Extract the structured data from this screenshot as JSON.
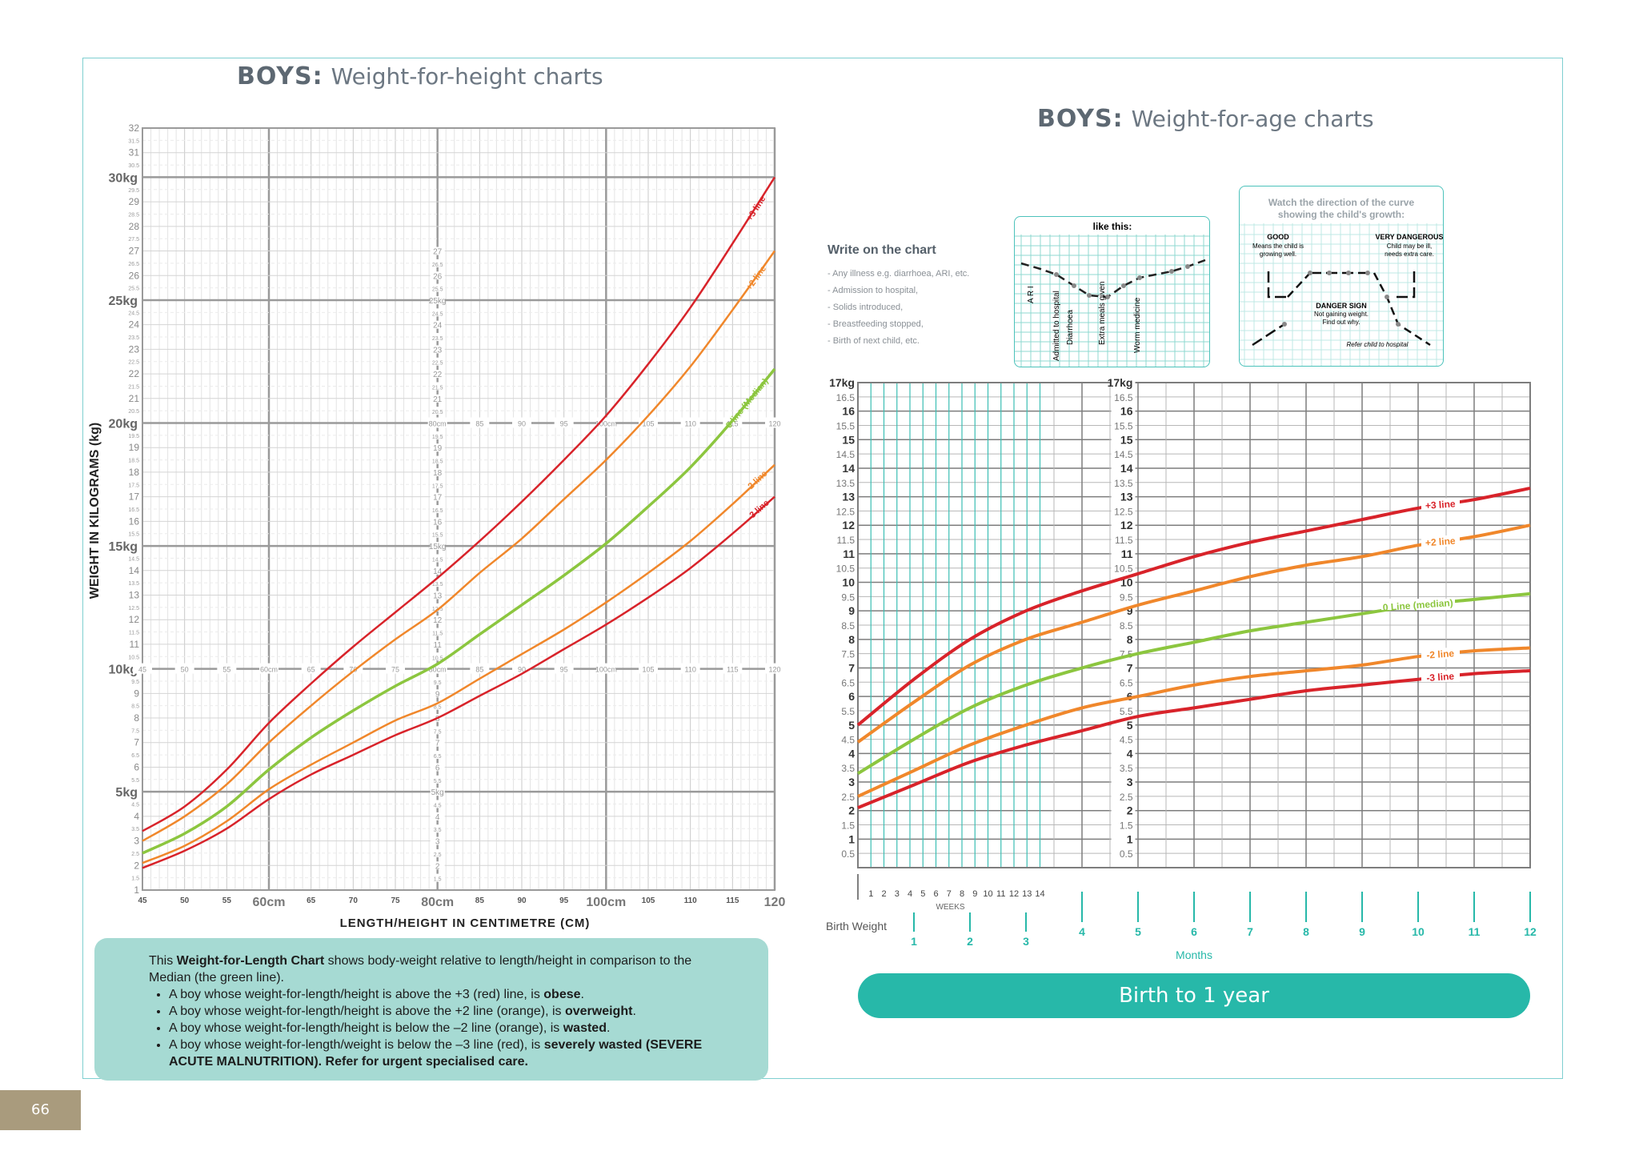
{
  "page_number": "66",
  "colors": {
    "red": "#d8232a",
    "orange": "#f0872b",
    "green": "#8cc63f",
    "teal": "#27b8a9"
  },
  "wfh": {
    "title_bold": "BOYS:",
    "title_rest": "Weight-for-height charts",
    "note": {
      "intro_pre": "This ",
      "intro_bold": "Weight-for-Length Chart",
      "intro_post": " shows body-weight relative to length/height in comparison to the Median (the green line).",
      "items": [
        {
          "pre": "A boy whose weight-for-length/height is above the +3 (red) line, is ",
          "bold": "obese",
          "post": "."
        },
        {
          "pre": "A boy whose weight-for-length/height is above the +2 line (orange), is ",
          "bold": "overweight",
          "post": "."
        },
        {
          "pre": "A boy whose weight-for-length/height is below the –2 line (orange), is ",
          "bold": "wasted",
          "post": "."
        },
        {
          "pre": "A boy whose weight-for-length/weight is below the –3 line (red), is ",
          "bold": "severely wasted (SEVERE ACUTE MALNUTRITION). Refer for urgent specialised care.",
          "post": ""
        }
      ]
    }
  },
  "wfa": {
    "title_bold": "BOYS:",
    "title_rest": "Weight-for-age charts",
    "write": {
      "heading": "Write on the chart",
      "items": [
        "- Any illness e.g. diarrhoea, ARI, etc.",
        "- Admission to hospital,",
        "- Solids introduced,",
        "- Breastfeeding stopped,",
        "- Birth of next child, etc."
      ]
    },
    "example": {
      "heading": "like this:",
      "labels": [
        "A R I",
        "Admitted to hospital",
        "Diarrhoea",
        "Extra meals given",
        "Worm medicine"
      ]
    },
    "watch": {
      "heading": "Watch the direction of the curve showing the child's growth:",
      "good_title": "GOOD",
      "good_text": "Means the child is growing well.",
      "vd_title": "VERY DANGEROUS",
      "vd_text": "Child may be ill, needs extra care.",
      "danger_title": "DANGER SIGN",
      "danger_text": "Not gaining weight. Find out why.",
      "refer": "Refer child to hospital"
    },
    "band": "Birth to 1 year"
  },
  "chart_data": [
    {
      "type": "line",
      "title": "BOYS: Weight-for-height charts",
      "xlabel": "LENGTH/HEIGHT IN CENTIMETRE (CM)",
      "ylabel": "WEIGHT IN KILOGRAMS (kg)",
      "xlim": [
        45,
        120
      ],
      "ylim": [
        1,
        32
      ],
      "x_major_ticks": [
        {
          "v": 60,
          "label": "60cm"
        },
        {
          "v": 80,
          "label": "80cm"
        },
        {
          "v": 100,
          "label": "100cm"
        },
        {
          "v": 120,
          "label": "120"
        }
      ],
      "x_minor_ticks": [
        45,
        50,
        55,
        65,
        70,
        75,
        85,
        90,
        95,
        105,
        110,
        115
      ],
      "y_major_ticks": [
        {
          "v": 5,
          "label": "5kg"
        },
        {
          "v": 10,
          "label": "10kg"
        },
        {
          "v": 15,
          "label": "15kg"
        },
        {
          "v": 20,
          "label": "20kg"
        },
        {
          "v": 25,
          "label": "25kg"
        },
        {
          "v": 30,
          "label": "30kg"
        }
      ],
      "y_unit_ticks": [
        1,
        2,
        3,
        4,
        6,
        7,
        8,
        9,
        11,
        12,
        13,
        14,
        16,
        17,
        18,
        19,
        21,
        22,
        23,
        24,
        26,
        27,
        28,
        29,
        31,
        32
      ],
      "y_half_ticks": [
        1.5,
        2.5,
        3.5,
        4.5,
        5.5,
        6.5,
        7.5,
        8.5,
        9.5,
        10.5,
        11.5,
        12.5,
        13.5,
        14.5,
        15.5,
        16.5,
        17.5,
        18.5,
        19.5,
        20.5,
        21.5,
        22.5,
        23.5,
        24.5,
        25.5,
        26.5,
        27.5,
        28.5,
        29.5,
        30.5,
        31.5
      ],
      "inner_row_labels": [
        {
          "x": 45,
          "y": 10,
          "row": "10kg"
        },
        {
          "x": 80,
          "y": 20,
          "row": "20kg"
        }
      ],
      "inner_col_labels": [
        {
          "x": 80,
          "labels": [
            "27",
            "26.5",
            "26",
            "25.5",
            "25kg",
            "24.5",
            "24",
            "23.5",
            "23",
            "22.5",
            "22",
            "21.5",
            "21",
            "20.5",
            "80cm",
            "19.5",
            "19",
            "18.5",
            "18",
            "17.5",
            "17",
            "16.5",
            "16",
            "15.5",
            "15kg",
            "14.5",
            "14",
            "13.5",
            "13",
            "12.5",
            "12",
            "11.5",
            "11",
            "10.5",
            "80cm",
            "9.5",
            "9",
            "8.5",
            "8",
            "7.5",
            "7",
            "6.5",
            "6",
            "5.5",
            "5kg",
            "4.5",
            "4",
            "3.5",
            "3",
            "2.5",
            "2",
            "1.5"
          ]
        }
      ],
      "series": [
        {
          "name": "+3 line",
          "color": "#d8232a",
          "x": [
            45,
            50,
            55,
            60,
            65,
            70,
            75,
            80,
            85,
            90,
            95,
            100,
            105,
            110,
            115,
            120
          ],
          "values": [
            3.4,
            4.4,
            5.9,
            7.8,
            9.4,
            10.9,
            12.3,
            13.7,
            15.2,
            16.8,
            18.5,
            20.3,
            22.4,
            24.7,
            27.3,
            30.0
          ]
        },
        {
          "name": "+2 line",
          "color": "#f0872b",
          "x": [
            45,
            50,
            55,
            60,
            65,
            70,
            75,
            80,
            85,
            90,
            95,
            100,
            105,
            110,
            115,
            120
          ],
          "values": [
            3.0,
            4.0,
            5.3,
            7.0,
            8.5,
            9.9,
            11.2,
            12.4,
            13.9,
            15.3,
            16.9,
            18.5,
            20.3,
            22.3,
            24.6,
            27.0
          ]
        },
        {
          "name": "0 line (Median)",
          "color": "#8cc63f",
          "x": [
            45,
            50,
            55,
            60,
            65,
            70,
            75,
            80,
            85,
            90,
            95,
            100,
            105,
            110,
            115,
            120
          ],
          "values": [
            2.5,
            3.3,
            4.4,
            5.9,
            7.2,
            8.3,
            9.3,
            10.2,
            11.4,
            12.6,
            13.8,
            15.1,
            16.6,
            18.2,
            20.1,
            22.2
          ]
        },
        {
          "name": "-2 line",
          "color": "#f0872b",
          "x": [
            45,
            50,
            55,
            60,
            65,
            70,
            75,
            80,
            85,
            90,
            95,
            100,
            105,
            110,
            115,
            120
          ],
          "values": [
            2.1,
            2.8,
            3.8,
            5.1,
            6.1,
            7.0,
            7.9,
            8.6,
            9.6,
            10.6,
            11.6,
            12.7,
            13.9,
            15.2,
            16.7,
            18.3
          ]
        },
        {
          "name": "-3 line",
          "color": "#d8232a",
          "x": [
            45,
            50,
            55,
            60,
            65,
            70,
            75,
            80,
            85,
            90,
            95,
            100,
            105,
            110,
            115,
            120
          ],
          "values": [
            1.9,
            2.6,
            3.5,
            4.7,
            5.7,
            6.5,
            7.3,
            8.0,
            8.9,
            9.8,
            10.8,
            11.8,
            12.9,
            14.1,
            15.5,
            17.0
          ]
        }
      ]
    },
    {
      "type": "line",
      "title": "BOYS: Weight-for-age charts",
      "xlabel": "Months",
      "ylabel": "",
      "xlim": [
        0,
        12
      ],
      "ylim": [
        0,
        17
      ],
      "y_ticks": [
        {
          "v": 17,
          "label": "17kg"
        },
        {
          "v": 16.5,
          "label": "16.5"
        },
        {
          "v": 16,
          "label": "16"
        },
        {
          "v": 15.5,
          "label": "15.5"
        },
        {
          "v": 15,
          "label": "15"
        },
        {
          "v": 14.5,
          "label": "14.5"
        },
        {
          "v": 14,
          "label": "14"
        },
        {
          "v": 13.5,
          "label": "13.5"
        },
        {
          "v": 13,
          "label": "13"
        },
        {
          "v": 12.5,
          "label": "12.5"
        },
        {
          "v": 12,
          "label": "12"
        },
        {
          "v": 11.5,
          "label": "11.5"
        },
        {
          "v": 11,
          "label": "11"
        },
        {
          "v": 10.5,
          "label": "10.5"
        },
        {
          "v": 10,
          "label": "10"
        },
        {
          "v": 9.5,
          "label": "9.5"
        },
        {
          "v": 9,
          "label": "9"
        },
        {
          "v": 8.5,
          "label": "8.5"
        },
        {
          "v": 8,
          "label": "8"
        },
        {
          "v": 7.5,
          "label": "7.5"
        },
        {
          "v": 7,
          "label": "7"
        },
        {
          "v": 6.5,
          "label": "6.5"
        },
        {
          "v": 6,
          "label": "6"
        },
        {
          "v": 5.5,
          "label": "5.5"
        },
        {
          "v": 5,
          "label": "5"
        },
        {
          "v": 4.5,
          "label": "4.5"
        },
        {
          "v": 4,
          "label": "4"
        },
        {
          "v": 3.5,
          "label": "3.5"
        },
        {
          "v": 3,
          "label": "3"
        },
        {
          "v": 2.5,
          "label": "2.5"
        },
        {
          "v": 2,
          "label": "2"
        },
        {
          "v": 1.5,
          "label": "1.5"
        },
        {
          "v": 1,
          "label": "1"
        },
        {
          "v": 0.5,
          "label": "0.5"
        }
      ],
      "weeks_label": "WEEKS",
      "week_ticks": [
        "1",
        "2",
        "3",
        "4",
        "5",
        "6",
        "7",
        "8",
        "9",
        "10",
        "11",
        "12",
        "13",
        "14"
      ],
      "birth_label": "Birth Weight",
      "month_ticks": [
        "1",
        "2",
        "3",
        "4",
        "5",
        "6",
        "7",
        "8",
        "9",
        "10",
        "11",
        "12"
      ],
      "series": [
        {
          "name": "+3 line",
          "color": "#d8232a",
          "x": [
            0,
            1,
            2,
            3,
            4,
            5,
            6,
            7,
            8,
            9,
            10,
            11,
            12
          ],
          "values": [
            5.0,
            6.6,
            8.0,
            9.0,
            9.7,
            10.3,
            10.9,
            11.4,
            11.8,
            12.2,
            12.6,
            12.9,
            13.3
          ]
        },
        {
          "name": "+2 line",
          "color": "#f0872b",
          "x": [
            0,
            1,
            2,
            3,
            4,
            5,
            6,
            7,
            8,
            9,
            10,
            11,
            12
          ],
          "values": [
            4.4,
            5.8,
            7.1,
            8.0,
            8.6,
            9.2,
            9.7,
            10.2,
            10.6,
            10.9,
            11.3,
            11.6,
            12.0
          ]
        },
        {
          "name": "0 Line (median)",
          "color": "#8cc63f",
          "x": [
            0,
            1,
            2,
            3,
            4,
            5,
            6,
            7,
            8,
            9,
            10,
            11,
            12
          ],
          "values": [
            3.3,
            4.5,
            5.6,
            6.4,
            7.0,
            7.5,
            7.9,
            8.3,
            8.6,
            8.9,
            9.2,
            9.4,
            9.6
          ]
        },
        {
          "name": "-2 line",
          "color": "#f0872b",
          "x": [
            0,
            1,
            2,
            3,
            4,
            5,
            6,
            7,
            8,
            9,
            10,
            11,
            12
          ],
          "values": [
            2.5,
            3.4,
            4.3,
            5.0,
            5.6,
            6.0,
            6.4,
            6.7,
            6.9,
            7.1,
            7.4,
            7.6,
            7.7
          ]
        },
        {
          "name": "-3 line",
          "color": "#d8232a",
          "x": [
            0,
            1,
            2,
            3,
            4,
            5,
            6,
            7,
            8,
            9,
            10,
            11,
            12
          ],
          "values": [
            2.1,
            2.9,
            3.7,
            4.3,
            4.8,
            5.3,
            5.6,
            5.9,
            6.2,
            6.4,
            6.6,
            6.8,
            6.9
          ]
        }
      ]
    }
  ]
}
